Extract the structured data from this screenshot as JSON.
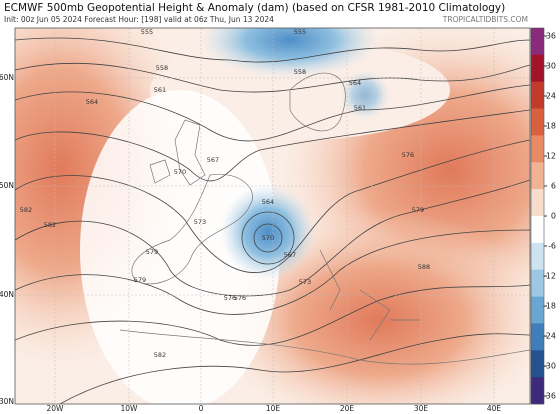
{
  "header": {
    "title": "ECMWF 500mb Geopotential Height & Anomaly (dam) (based on CFSR 1981-2010 Climatology)",
    "subtitle": "Init: 00z Jun 05 2024   Forecast Hour: [198]   valid at 06z Thu, Jun 13 2024",
    "brand": "TROPICALTIDBITS.COM"
  },
  "lat_labels": [
    "60N",
    "50N",
    "40N",
    "30N"
  ],
  "lon_labels": [
    "20W",
    "10W",
    "0",
    "10E",
    "20E",
    "30E",
    "40E"
  ],
  "colorbar": {
    "ticks": [
      36,
      30,
      24,
      18,
      12,
      6,
      0,
      -6,
      -12,
      -18,
      -24,
      -30,
      -36
    ],
    "colors": [
      "#8a2a7a",
      "#a3132a",
      "#c23a2a",
      "#d9603f",
      "#e88a66",
      "#f2b394",
      "#f8dccc",
      "#ffffff",
      "#cde3f0",
      "#9cc8e4",
      "#6aa6d2",
      "#3f7eb9",
      "#24528f",
      "#3d2a7a"
    ]
  },
  "contour_labels": [
    "555",
    "558",
    "561",
    "564",
    "567",
    "570",
    "573",
    "576",
    "579",
    "582",
    "564",
    "567",
    "570",
    "573",
    "576",
    "579",
    "582",
    "588",
    "555",
    "558",
    "561",
    "564",
    "576",
    "579",
    "582"
  ]
}
